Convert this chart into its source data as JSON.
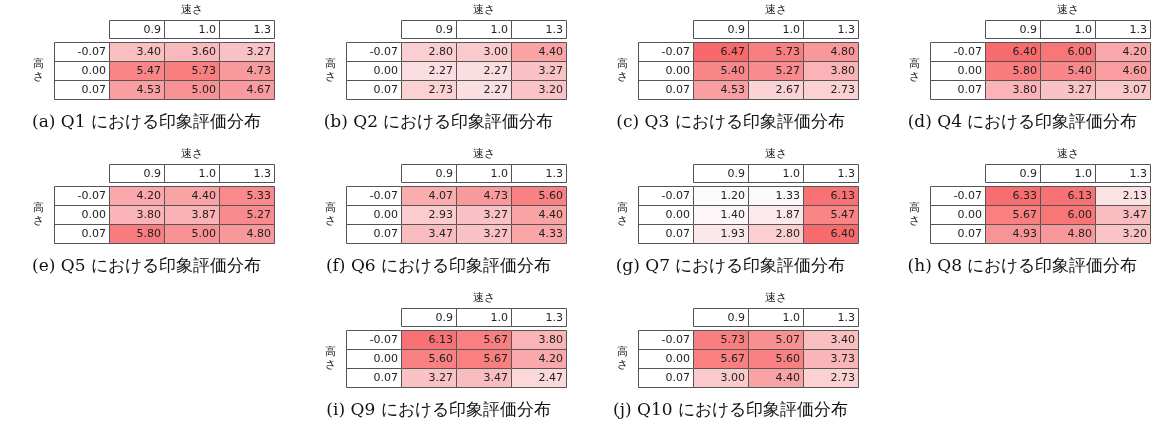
{
  "chart_data": [
    {
      "type": "heatmap",
      "title": "(a) Q1 における印象評価分布",
      "xlabel": "速さ",
      "ylabel": "高さ",
      "categories": [
        "0.9",
        "1.0",
        "1.3"
      ],
      "y_categories": [
        "-0.07",
        "0.00",
        "0.07"
      ],
      "cells": [
        [
          3.4,
          3.6,
          3.27
        ],
        [
          5.47,
          5.73,
          4.73
        ],
        [
          4.53,
          5.0,
          4.67
        ]
      ],
      "cell_labels": [
        [
          "3.40",
          "3.60",
          "3.27"
        ],
        [
          "5.47",
          "5.73",
          "4.73"
        ],
        [
          "4.53",
          "5.00",
          "4.67"
        ]
      ]
    },
    {
      "type": "heatmap",
      "title": "(b) Q2 における印象評価分布",
      "xlabel": "速さ",
      "ylabel": "高さ",
      "categories": [
        "0.9",
        "1.0",
        "1.3"
      ],
      "y_categories": [
        "-0.07",
        "0.00",
        "0.07"
      ],
      "cells": [
        [
          2.8,
          3.0,
          4.4
        ],
        [
          2.27,
          2.27,
          3.27
        ],
        [
          2.73,
          2.27,
          3.2
        ]
      ],
      "cell_labels": [
        [
          "2.80",
          "3.00",
          "4.40"
        ],
        [
          "2.27",
          "2.27",
          "3.27"
        ],
        [
          "2.73",
          "2.27",
          "3.20"
        ]
      ]
    },
    {
      "type": "heatmap",
      "title": "(c) Q3 における印象評価分布",
      "xlabel": "速さ",
      "ylabel": "高さ",
      "categories": [
        "0.9",
        "1.0",
        "1.3"
      ],
      "y_categories": [
        "-0.07",
        "0.00",
        "0.07"
      ],
      "cells": [
        [
          6.47,
          5.73,
          4.8
        ],
        [
          5.4,
          5.27,
          3.8
        ],
        [
          4.53,
          2.67,
          2.73
        ]
      ],
      "cell_labels": [
        [
          "6.47",
          "5.73",
          "4.80"
        ],
        [
          "5.40",
          "5.27",
          "3.80"
        ],
        [
          "4.53",
          "2.67",
          "2.73"
        ]
      ]
    },
    {
      "type": "heatmap",
      "title": "(d) Q4 における印象評価分布",
      "xlabel": "速さ",
      "ylabel": "高さ",
      "categories": [
        "0.9",
        "1.0",
        "1.3"
      ],
      "y_categories": [
        "-0.07",
        "0.00",
        "0.07"
      ],
      "cells": [
        [
          6.4,
          6.0,
          4.2
        ],
        [
          5.8,
          5.4,
          4.6
        ],
        [
          3.8,
          3.27,
          3.07
        ]
      ],
      "cell_labels": [
        [
          "6.40",
          "6.00",
          "4.20"
        ],
        [
          "5.80",
          "5.40",
          "4.60"
        ],
        [
          "3.80",
          "3.27",
          "3.07"
        ]
      ]
    },
    {
      "type": "heatmap",
      "title": "(e) Q5 における印象評価分布",
      "xlabel": "速さ",
      "ylabel": "高さ",
      "categories": [
        "0.9",
        "1.0",
        "1.3"
      ],
      "y_categories": [
        "-0.07",
        "0.00",
        "0.07"
      ],
      "cells": [
        [
          4.2,
          4.4,
          5.33
        ],
        [
          3.8,
          3.87,
          5.27
        ],
        [
          5.8,
          5.0,
          4.8
        ]
      ],
      "cell_labels": [
        [
          "4.20",
          "4.40",
          "5.33"
        ],
        [
          "3.80",
          "3.87",
          "5.27"
        ],
        [
          "5.80",
          "5.00",
          "4.80"
        ]
      ]
    },
    {
      "type": "heatmap",
      "title": "(f) Q6 における印象評価分布",
      "xlabel": "速さ",
      "ylabel": "高さ",
      "categories": [
        "0.9",
        "1.0",
        "1.3"
      ],
      "y_categories": [
        "-0.07",
        "0.00",
        "0.07"
      ],
      "cells": [
        [
          4.07,
          4.73,
          5.6
        ],
        [
          2.93,
          3.27,
          4.4
        ],
        [
          3.47,
          3.27,
          4.33
        ]
      ],
      "cell_labels": [
        [
          "4.07",
          "4.73",
          "5.60"
        ],
        [
          "2.93",
          "3.27",
          "4.40"
        ],
        [
          "3.47",
          "3.27",
          "4.33"
        ]
      ]
    },
    {
      "type": "heatmap",
      "title": "(g) Q7 における印象評価分布",
      "xlabel": "速さ",
      "ylabel": "高さ",
      "categories": [
        "0.9",
        "1.0",
        "1.3"
      ],
      "y_categories": [
        "-0.07",
        "0.00",
        "0.07"
      ],
      "cells": [
        [
          1.2,
          1.33,
          6.13
        ],
        [
          1.4,
          1.87,
          5.47
        ],
        [
          1.93,
          2.8,
          6.4
        ]
      ],
      "cell_labels": [
        [
          "1.20",
          "1.33",
          "6.13"
        ],
        [
          "1.40",
          "1.87",
          "5.47"
        ],
        [
          "1.93",
          "2.80",
          "6.40"
        ]
      ]
    },
    {
      "type": "heatmap",
      "title": "(h) Q8 における印象評価分布",
      "xlabel": "速さ",
      "ylabel": "高さ",
      "categories": [
        "0.9",
        "1.0",
        "1.3"
      ],
      "y_categories": [
        "-0.07",
        "0.00",
        "0.07"
      ],
      "cells": [
        [
          6.33,
          6.13,
          2.13
        ],
        [
          5.67,
          6.0,
          3.47
        ],
        [
          4.93,
          4.8,
          3.2
        ]
      ],
      "cell_labels": [
        [
          "6.33",
          "6.13",
          "2.13"
        ],
        [
          "5.67",
          "6.00",
          "3.47"
        ],
        [
          "4.93",
          "4.80",
          "3.20"
        ]
      ]
    },
    {
      "type": "heatmap",
      "title": "(i) Q9 における印象評価分布",
      "xlabel": "速さ",
      "ylabel": "高さ",
      "categories": [
        "0.9",
        "1.0",
        "1.3"
      ],
      "y_categories": [
        "-0.07",
        "0.00",
        "0.07"
      ],
      "cells": [
        [
          6.13,
          5.67,
          3.8
        ],
        [
          5.6,
          5.67,
          4.2
        ],
        [
          3.27,
          3.47,
          2.47
        ]
      ],
      "cell_labels": [
        [
          "6.13",
          "5.67",
          "3.80"
        ],
        [
          "5.60",
          "5.67",
          "4.20"
        ],
        [
          "3.27",
          "3.47",
          "2.47"
        ]
      ]
    },
    {
      "type": "heatmap",
      "title": "(j) Q10 における印象評価分布",
      "xlabel": "速さ",
      "ylabel": "高さ",
      "categories": [
        "0.9",
        "1.0",
        "1.3"
      ],
      "y_categories": [
        "-0.07",
        "0.00",
        "0.07"
      ],
      "cells": [
        [
          5.73,
          5.07,
          3.4
        ],
        [
          5.67,
          5.6,
          3.73
        ],
        [
          3.0,
          4.4,
          2.73
        ]
      ],
      "cell_labels": [
        [
          "5.73",
          "5.07",
          "3.40"
        ],
        [
          "5.67",
          "5.60",
          "3.73"
        ],
        [
          "3.00",
          "4.40",
          "2.73"
        ]
      ]
    }
  ]
}
